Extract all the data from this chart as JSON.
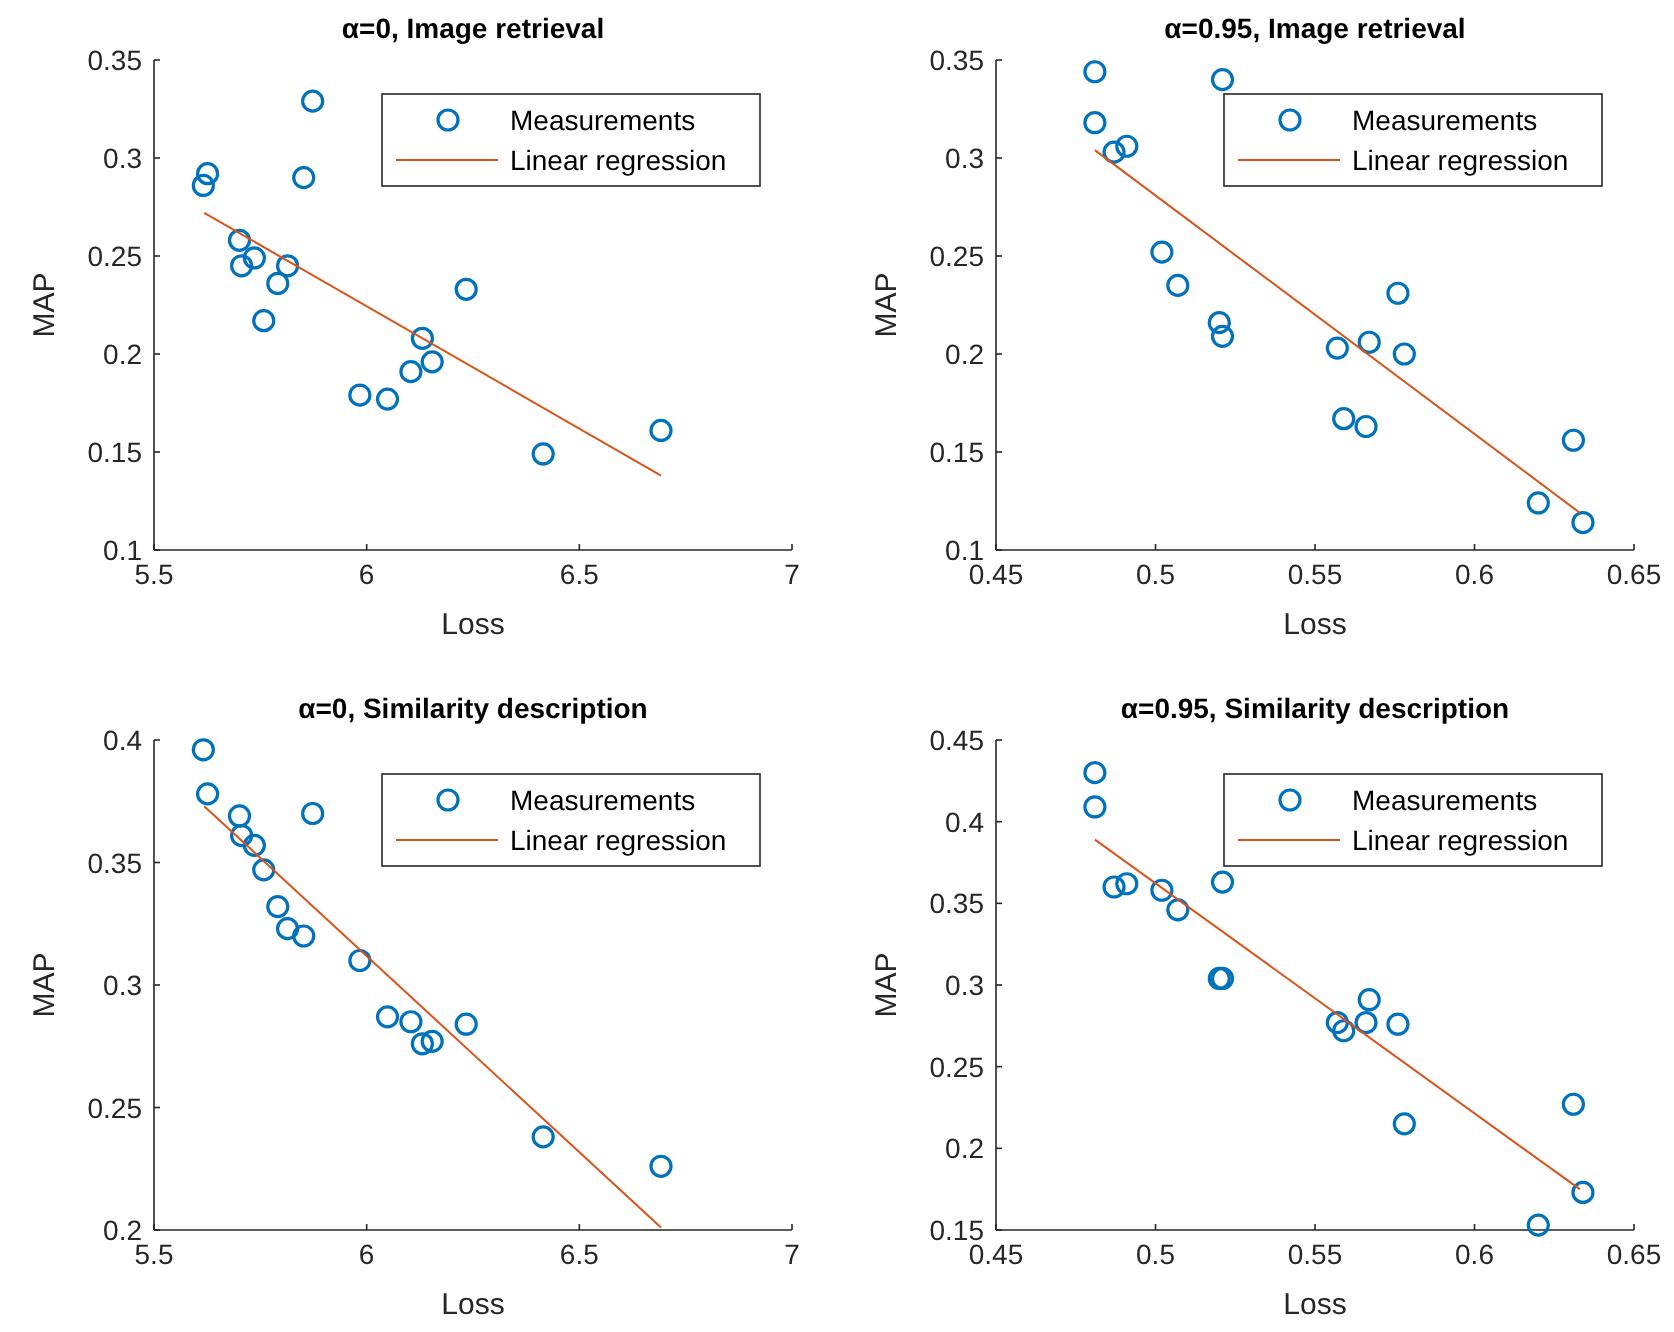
{
  "chart_data": [
    {
      "type": "scatter",
      "title": "α=0, Image retrieval",
      "xlabel": "Loss",
      "ylabel": "MAP",
      "xlim": [
        5.5,
        7
      ],
      "xticks": [
        5.5,
        6,
        6.5,
        7
      ],
      "ylim": [
        0.1,
        0.35
      ],
      "yticks": [
        0.1,
        0.15,
        0.2,
        0.25,
        0.3,
        0.35
      ],
      "legend": "top right",
      "series": [
        {
          "name": "Measurements",
          "type": "scatter",
          "marker": "circle",
          "color": "#0072bd",
          "x": [
            5.616,
            5.626,
            5.873,
            5.852,
            5.701,
            5.736,
            5.706,
            5.814,
            5.791,
            5.758,
            6.234,
            6.131,
            6.154,
            6.104,
            5.984,
            6.049,
            6.415,
            6.692
          ],
          "values": [
            0.286,
            0.292,
            0.329,
            0.29,
            0.258,
            0.249,
            0.245,
            0.245,
            0.236,
            0.217,
            0.233,
            0.208,
            0.196,
            0.191,
            0.179,
            0.177,
            0.149,
            0.161
          ]
        },
        {
          "name": "Linear regression",
          "type": "line",
          "marker": "none",
          "color": "#d95319",
          "x": [
            5.618,
            6.692
          ],
          "values": [
            0.272,
            0.138
          ]
        }
      ]
    },
    {
      "type": "scatter",
      "title": "α=0.95, Image retrieval",
      "xlabel": "Loss",
      "ylabel": "MAP",
      "xlim": [
        0.45,
        0.65
      ],
      "xticks": [
        0.45,
        0.5,
        0.55,
        0.6,
        0.65
      ],
      "ylim": [
        0.1,
        0.35
      ],
      "yticks": [
        0.1,
        0.15,
        0.2,
        0.25,
        0.3,
        0.35
      ],
      "legend": "top right",
      "series": [
        {
          "name": "Measurements",
          "type": "scatter",
          "marker": "circle",
          "color": "#0072bd",
          "x": [
            0.481,
            0.481,
            0.487,
            0.491,
            0.521,
            0.502,
            0.507,
            0.52,
            0.521,
            0.557,
            0.567,
            0.576,
            0.578,
            0.559,
            0.566,
            0.631,
            0.62,
            0.634
          ],
          "values": [
            0.344,
            0.318,
            0.303,
            0.306,
            0.34,
            0.252,
            0.235,
            0.216,
            0.209,
            0.203,
            0.206,
            0.231,
            0.2,
            0.167,
            0.163,
            0.156,
            0.124,
            0.114
          ]
        },
        {
          "name": "Linear regression",
          "type": "line",
          "marker": "none",
          "color": "#d95319",
          "x": [
            0.481,
            0.633
          ],
          "values": [
            0.304,
            0.119
          ]
        }
      ]
    },
    {
      "type": "scatter",
      "title": "α=0, Similarity description",
      "xlabel": "Loss",
      "ylabel": "MAP",
      "xlim": [
        5.5,
        7
      ],
      "xticks": [
        5.5,
        6,
        6.5,
        7
      ],
      "ylim": [
        0.2,
        0.4
      ],
      "yticks": [
        0.2,
        0.25,
        0.3,
        0.35,
        0.4
      ],
      "legend": "top right",
      "series": [
        {
          "name": "Measurements",
          "type": "scatter",
          "marker": "circle",
          "color": "#0072bd",
          "x": [
            5.616,
            5.626,
            5.701,
            5.706,
            5.736,
            5.873,
            5.758,
            5.791,
            5.814,
            5.852,
            5.984,
            6.049,
            6.104,
            6.131,
            6.154,
            6.234,
            6.415,
            6.692
          ],
          "values": [
            0.396,
            0.378,
            0.369,
            0.361,
            0.357,
            0.37,
            0.347,
            0.332,
            0.323,
            0.32,
            0.31,
            0.287,
            0.285,
            0.276,
            0.277,
            0.284,
            0.238,
            0.226
          ]
        },
        {
          "name": "Linear regression",
          "type": "line",
          "marker": "none",
          "color": "#d95319",
          "x": [
            5.618,
            6.692
          ],
          "values": [
            0.373,
            0.201
          ]
        }
      ]
    },
    {
      "type": "scatter",
      "title": "α=0.95, Similarity description",
      "xlabel": "Loss",
      "ylabel": "MAP",
      "xlim": [
        0.45,
        0.65
      ],
      "xticks": [
        0.45,
        0.5,
        0.55,
        0.6,
        0.65
      ],
      "ylim": [
        0.15,
        0.45
      ],
      "yticks": [
        0.15,
        0.2,
        0.25,
        0.3,
        0.35,
        0.4,
        0.45
      ],
      "legend": "top right",
      "series": [
        {
          "name": "Measurements",
          "type": "scatter",
          "marker": "circle",
          "color": "#0072bd",
          "x": [
            0.481,
            0.481,
            0.487,
            0.491,
            0.502,
            0.507,
            0.521,
            0.52,
            0.521,
            0.557,
            0.559,
            0.566,
            0.567,
            0.576,
            0.578,
            0.631,
            0.62,
            0.634
          ],
          "values": [
            0.43,
            0.409,
            0.36,
            0.362,
            0.358,
            0.346,
            0.363,
            0.304,
            0.304,
            0.277,
            0.272,
            0.277,
            0.291,
            0.276,
            0.215,
            0.227,
            0.153,
            0.173
          ]
        },
        {
          "name": "Linear regression",
          "type": "line",
          "marker": "none",
          "color": "#d95319",
          "x": [
            0.481,
            0.633
          ],
          "values": [
            0.389,
            0.175
          ]
        }
      ]
    }
  ]
}
